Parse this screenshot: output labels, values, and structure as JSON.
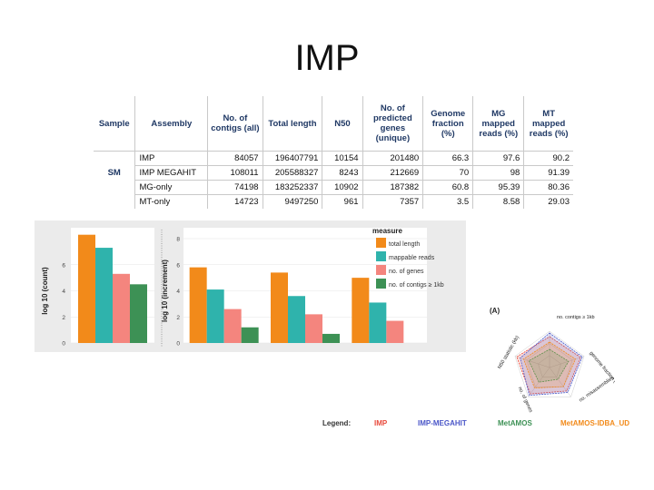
{
  "slide": {
    "title": "IMP"
  },
  "table": {
    "headers": [
      "Sample",
      "Assembly",
      "No. of contigs (all)",
      "Total length",
      "N50",
      "No. of predicted genes (unique)",
      "Genome fraction (%)",
      "MG mapped reads (%)",
      "MT mapped reads (%)"
    ],
    "sample": "SM",
    "rows": [
      [
        "IMP",
        "84057",
        "196407791",
        "10154",
        "201480",
        "66.3",
        "97.6",
        "90.2"
      ],
      [
        "IMP MEGAHIT",
        "108011",
        "205588327",
        "8243",
        "212669",
        "70",
        "98",
        "91.39"
      ],
      [
        "MG-only",
        "74198",
        "183252337",
        "10902",
        "187382",
        "60.8",
        "95.39",
        "80.36"
      ],
      [
        "MT-only",
        "14723",
        "9497250",
        "961",
        "7357",
        "3.5",
        "8.58",
        "29.03"
      ]
    ]
  },
  "chart_data": [
    {
      "type": "bar",
      "ylabel": "log 10 (count)",
      "ylim": [
        0,
        8
      ],
      "yticks": [
        "0",
        "2",
        "4",
        "6"
      ],
      "categories": [
        ""
      ],
      "series": [
        {
          "name": "total length",
          "color": "#f28a1a",
          "values": [
            8.3
          ]
        },
        {
          "name": "mappable reads",
          "color": "#2fb3ac",
          "values": [
            7.3
          ]
        },
        {
          "name": "no. of genes",
          "color": "#f4857e",
          "values": [
            5.3
          ]
        },
        {
          "name": "no. of contigs ≥ 1kb",
          "color": "#3d9155",
          "values": [
            4.5
          ]
        }
      ]
    },
    {
      "type": "bar",
      "ylabel": "log 10 (increment)",
      "ylim": [
        0,
        8
      ],
      "yticks": [
        "0",
        "2",
        "4",
        "6",
        "8"
      ],
      "categories": [
        "",
        "",
        ""
      ],
      "series": [
        {
          "name": "total length",
          "color": "#f28a1a",
          "values": [
            5.8,
            5.4,
            5.0
          ]
        },
        {
          "name": "mappable reads",
          "color": "#2fb3ac",
          "values": [
            4.1,
            3.6,
            3.1
          ]
        },
        {
          "name": "no. of genes",
          "color": "#f4857e",
          "values": [
            2.6,
            2.2,
            1.7
          ]
        },
        {
          "name": "no. of contigs ≥ 1kb",
          "color": "#3d9155",
          "values": [
            1.2,
            0.7,
            0
          ]
        }
      ]
    },
    {
      "type": "radar",
      "panel_label": "(A)",
      "axes": [
        "no. contigs ≥ 1kb",
        "genome fraction (%)",
        "no. misassemblies",
        "no. of genes",
        "N50 statistic (kb)"
      ],
      "series": [
        {
          "name": "IMP",
          "color": "#e8483a",
          "values": [
            0.85,
            0.9,
            0.8,
            0.9,
            0.95
          ]
        },
        {
          "name": "IMP-MEGAHIT",
          "color": "#4a56c8",
          "values": [
            0.95,
            0.95,
            0.85,
            0.95,
            0.85
          ]
        },
        {
          "name": "MetAMOS",
          "color": "#3d9155",
          "values": [
            0.5,
            0.55,
            0.4,
            0.5,
            0.6
          ]
        },
        {
          "name": "MetAMOS-IDBA_UD",
          "color": "#f28a1a",
          "values": [
            0.7,
            0.75,
            0.65,
            0.7,
            0.75
          ]
        }
      ]
    }
  ],
  "legend": {
    "measure_title": "measure",
    "radar_title": "Legend:"
  }
}
